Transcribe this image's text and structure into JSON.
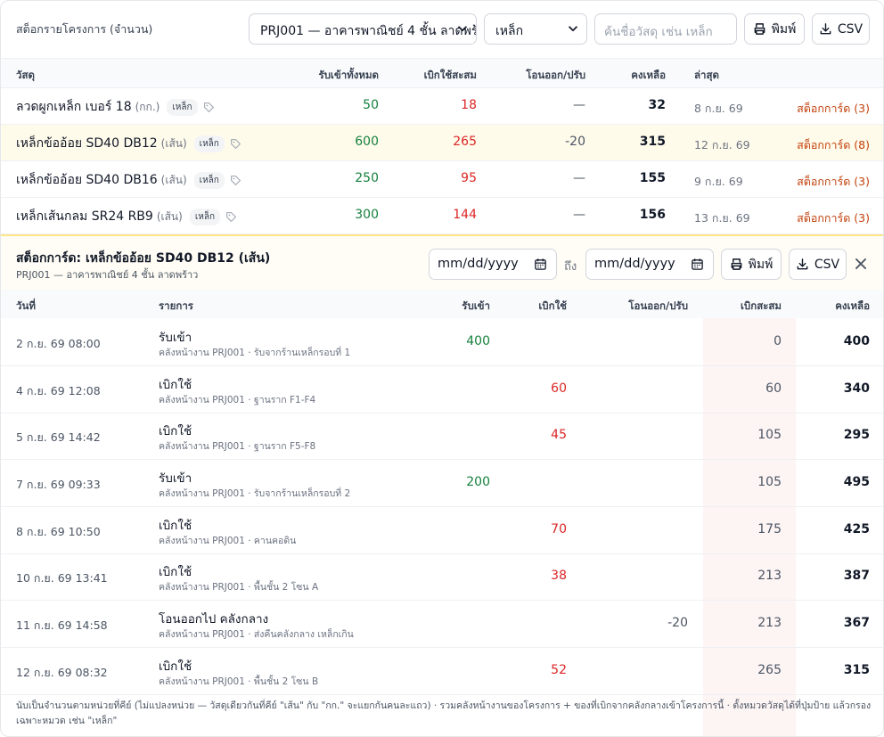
{
  "toolbar": {
    "title": "สต็อกรายโครงการ (จำนวน)",
    "project_select": "PRJ001 — อาคารพาณิชย์ 4 ชั้น ลาดพร้าว",
    "category_select": "เหล็ก",
    "search_placeholder": "ค้นชื่อวัสดุ เช่น เหล็ก",
    "print_label": "พิมพ์",
    "csv_label": "CSV"
  },
  "materials": {
    "headers": {
      "material": "วัสดุ",
      "received": "รับเข้าทั้งหมด",
      "issued": "เบิกใช้สะสม",
      "transfer": "โอนออก/ปรับ",
      "balance": "คงเหลือ",
      "latest": "ล่าสุด"
    },
    "rows": [
      {
        "name": "ลวดผูกเหล็ก เบอร์ 18",
        "unit": "(กก.)",
        "tag": "เหล็ก",
        "received": "50",
        "issued": "18",
        "transfer": "—",
        "balance": "32",
        "latest": "8 ก.ย. 69",
        "link": "สต็อกการ์ด (3)"
      },
      {
        "name": "เหล็กข้ออ้อย SD40 DB12",
        "unit": "(เส้น)",
        "tag": "เหล็ก",
        "received": "600",
        "issued": "265",
        "transfer": "-20",
        "balance": "315",
        "latest": "12 ก.ย. 69",
        "link": "สต็อกการ์ด (8)"
      },
      {
        "name": "เหล็กข้ออ้อย SD40 DB16",
        "unit": "(เส้น)",
        "tag": "เหล็ก",
        "received": "250",
        "issued": "95",
        "transfer": "—",
        "balance": "155",
        "latest": "9 ก.ย. 69",
        "link": "สต็อกการ์ด (3)"
      },
      {
        "name": "เหล็กเส้นกลม SR24 RB9",
        "unit": "(เส้น)",
        "tag": "เหล็ก",
        "received": "300",
        "issued": "144",
        "transfer": "—",
        "balance": "156",
        "latest": "13 ก.ย. 69",
        "link": "สต็อกการ์ด (3)"
      }
    ]
  },
  "stock_card": {
    "title": "สต็อกการ์ด: เหล็กข้ออ้อย SD40 DB12 (เส้น)",
    "subtitle": "PRJ001 — อาคารพาณิชย์ 4 ชั้น ลาดพร้าว",
    "date_from": "mm/dd/yyyy",
    "to_label": "ถึง",
    "date_to": "mm/dd/yyyy",
    "print_label": "พิมพ์",
    "csv_label": "CSV",
    "headers": {
      "date": "วันที่",
      "item": "รายการ",
      "in": "รับเข้า",
      "out": "เบิกใช้",
      "transfer": "โอนออก/ปรับ",
      "cumulative": "เบิกสะสม",
      "balance": "คงเหลือ"
    },
    "rows": [
      {
        "date": "2 ก.ย. 69 08:00",
        "item": "รับเข้า",
        "sub": "คลังหน้างาน PRJ001 · รับจากร้านเหล็กรอบที่ 1",
        "in": "400",
        "out": "",
        "transfer": "",
        "cumulative": "0",
        "balance": "400"
      },
      {
        "date": "4 ก.ย. 69 12:08",
        "item": "เบิกใช้",
        "sub": "คลังหน้างาน PRJ001 · ฐานราก F1-F4",
        "in": "",
        "out": "60",
        "transfer": "",
        "cumulative": "60",
        "balance": "340"
      },
      {
        "date": "5 ก.ย. 69 14:42",
        "item": "เบิกใช้",
        "sub": "คลังหน้างาน PRJ001 · ฐานราก F5-F8",
        "in": "",
        "out": "45",
        "transfer": "",
        "cumulative": "105",
        "balance": "295"
      },
      {
        "date": "7 ก.ย. 69 09:33",
        "item": "รับเข้า",
        "sub": "คลังหน้างาน PRJ001 · รับจากร้านเหล็กรอบที่ 2",
        "in": "200",
        "out": "",
        "transfer": "",
        "cumulative": "105",
        "balance": "495"
      },
      {
        "date": "8 ก.ย. 69 10:50",
        "item": "เบิกใช้",
        "sub": "คลังหน้างาน PRJ001 · คานคอดิน",
        "in": "",
        "out": "70",
        "transfer": "",
        "cumulative": "175",
        "balance": "425"
      },
      {
        "date": "10 ก.ย. 69 13:41",
        "item": "เบิกใช้",
        "sub": "คลังหน้างาน PRJ001 · พื้นชั้น 2 โซน A",
        "in": "",
        "out": "38",
        "transfer": "",
        "cumulative": "213",
        "balance": "387"
      },
      {
        "date": "11 ก.ย. 69 14:58",
        "item": "โอนออกไป คลังกลาง",
        "sub": "คลังหน้างาน PRJ001 · ส่งคืนคลังกลาง เหล็กเกิน",
        "in": "",
        "out": "",
        "transfer": "-20",
        "cumulative": "213",
        "balance": "367"
      },
      {
        "date": "12 ก.ย. 69 08:32",
        "item": "เบิกใช้",
        "sub": "คลังหน้างาน PRJ001 · พื้นชั้น 2 โซน B",
        "in": "",
        "out": "52",
        "transfer": "",
        "cumulative": "265",
        "balance": "315"
      }
    ]
  },
  "footer_note": "นับเป็นจำนวนตามหน่วยที่คีย์ (ไม่แปลงหน่วย — วัสดุเดียวกันที่คีย์ \"เส้น\" กับ \"กก.\" จะแยกกันคนละแถว) · รวมคลังหน้างานของโครงการ + ของที่เบิกจากคลังกลางเข้าโครงการนี้ · ตั้งหมวดวัสดุได้ที่ปุ่มป้าย แล้วกรองเฉพาะหมวด เช่น \"เหล็ก\""
}
